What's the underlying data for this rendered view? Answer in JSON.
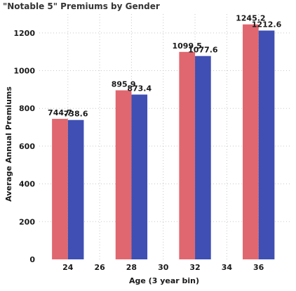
{
  "chart_data": {
    "type": "bar",
    "title": "\"Notable 5\" Premiums by Gender",
    "xlabel": "Age (3 year bin)",
    "ylabel": "Average Annual Premiums",
    "x_ticks": [
      24,
      26,
      28,
      30,
      32,
      34,
      36
    ],
    "xlim": [
      22.2,
      38
    ],
    "ylim": [
      0,
      1300
    ],
    "y_ticks": [
      0,
      200,
      400,
      600,
      800,
      1000,
      1200
    ],
    "grid": true,
    "legend": "none",
    "categories": [
      24,
      28,
      32,
      36
    ],
    "series": [
      {
        "color": "#e0676f",
        "values": [
          744.7,
          895.9,
          1099.5,
          1245.2
        ]
      },
      {
        "color": "#3f4fb3",
        "values": [
          738.6,
          873.4,
          1077.6,
          1212.6
        ]
      }
    ],
    "data_labels": {
      "s0": [
        "744.7",
        "895.9",
        "1099.5",
        "1245.2"
      ],
      "s1": [
        "738.6",
        "873.4",
        "1077.6",
        "1212.6"
      ]
    }
  }
}
